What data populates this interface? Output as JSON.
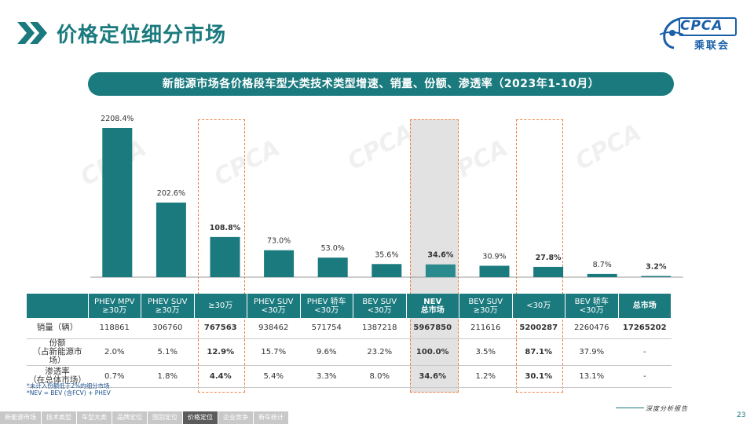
{
  "header": {
    "title": "价格定位细分市场",
    "logo_text": "CPCA",
    "logo_cn": "乘联会"
  },
  "banner": {
    "text": "新能源市场各价格段车型大类技术类型增速、销量、份额、渗透率（2023年1-10月）"
  },
  "colors": {
    "bar": "#1b7a7e",
    "bar_highlight": "#2a8a8d",
    "highlight_border": "#f07f3e",
    "shade": "#e2e2e2"
  },
  "chart_data": {
    "type": "bar",
    "title": "新能源市场各价格段车型大类技术类型增速、销量、份额、渗透率（2023年1-10月）",
    "categories": [
      "PHEV MPV ≥30万",
      "PHEV SUV ≥30万",
      "≥30万",
      "PHEV SUV <30万",
      "PHEV 轿车 <30万",
      "BEV SUV <30万",
      "NEV 总市场",
      "BEV SUV ≥30万",
      "<30万",
      "BEV 轿车 <30万",
      "总市场"
    ],
    "values": [
      2208.4,
      202.6,
      108.8,
      73.0,
      53.0,
      35.6,
      34.6,
      30.9,
      27.8,
      8.7,
      3.2
    ],
    "value_labels": [
      "2208.4%",
      "202.6%",
      "108.8%",
      "73.0%",
      "53.0%",
      "35.6%",
      "34.6%",
      "30.9%",
      "27.8%",
      "8.7%",
      "3.2%"
    ],
    "bold_labels": [
      false,
      false,
      true,
      false,
      false,
      false,
      true,
      false,
      true,
      false,
      true
    ],
    "highlighted_columns": [
      2,
      6,
      8
    ],
    "shaded_column": 6,
    "y_scale": "broken",
    "grid": false,
    "legend": "none"
  },
  "table": {
    "headers": [
      [
        "",
        ""
      ],
      [
        "PHEV MPV",
        "≥30万"
      ],
      [
        "PHEV SUV",
        "≥30万"
      ],
      [
        "≥30万",
        ""
      ],
      [
        "PHEV SUV",
        "<30万"
      ],
      [
        "PHEV 轿车",
        "<30万"
      ],
      [
        "BEV SUV",
        "<30万"
      ],
      [
        "NEV",
        "总市场"
      ],
      [
        "BEV SUV",
        "≥30万"
      ],
      [
        "<30万",
        ""
      ],
      [
        "BEV 轿车",
        "<30万"
      ],
      [
        "总市场",
        ""
      ]
    ],
    "rows": [
      {
        "label": [
          "销量（辆）",
          ""
        ],
        "cells": [
          "118861",
          "306760",
          "767563",
          "938462",
          "571754",
          "1387218",
          "5967850",
          "211616",
          "5200287",
          "2260476",
          "17265202"
        ]
      },
      {
        "label": [
          "份额",
          "（占新能源市场）"
        ],
        "cells": [
          "2.0%",
          "5.1%",
          "12.9%",
          "15.7%",
          "9.6%",
          "23.2%",
          "100.0%",
          "3.5%",
          "87.1%",
          "37.9%",
          "-"
        ]
      },
      {
        "label": [
          "渗透率",
          "（在总体市场）"
        ],
        "cells": [
          "0.7%",
          "1.8%",
          "4.4%",
          "5.4%",
          "3.3%",
          "8.0%",
          "34.6%",
          "1.2%",
          "30.1%",
          "13.1%",
          "-"
        ]
      }
    ]
  },
  "footnotes": [
    "*未计入份额低于2%的细分市场",
    "*NEV = BEV (含FCV) + PHEV"
  ],
  "footer": {
    "slogan": "深度分析报告",
    "page_number": "23",
    "nav": [
      {
        "label": "新能源市场",
        "active": false
      },
      {
        "label": "技术类型",
        "active": false
      },
      {
        "label": "车型大类",
        "active": false
      },
      {
        "label": "品牌定位",
        "active": false
      },
      {
        "label": "国别定位",
        "active": false
      },
      {
        "label": "价格定位",
        "active": true
      },
      {
        "label": "企业竞争",
        "active": false
      },
      {
        "label": "新车统计",
        "active": false
      }
    ]
  }
}
